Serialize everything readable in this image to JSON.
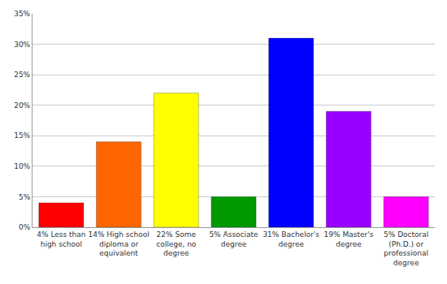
{
  "chart_data": {
    "type": "bar",
    "categories": [
      "4% Less than high school",
      "14% High school diploma or equivalent",
      "22% Some college, no degree",
      "5% Associate degree",
      "31% Bachelor's degree",
      "19% Master's degree",
      "5% Doctoral (Ph.D.) or professional degree"
    ],
    "values": [
      4,
      14,
      22,
      5,
      31,
      19,
      5
    ],
    "colors": [
      "#ff0000",
      "#ff6600",
      "#ffff00",
      "#009900",
      "#0000ff",
      "#9900ff",
      "#ff00ff"
    ],
    "ylim": [
      0,
      35
    ],
    "yticks": [
      {
        "value": 0,
        "label": "0%"
      },
      {
        "value": 5,
        "label": "5%"
      },
      {
        "value": 10,
        "label": "10%"
      },
      {
        "value": 15,
        "label": "15%"
      },
      {
        "value": 20,
        "label": "20%"
      },
      {
        "value": 25,
        "label": "25%"
      },
      {
        "value": 30,
        "label": "30%"
      },
      {
        "value": 35,
        "label": "35%"
      }
    ],
    "grid": true
  }
}
